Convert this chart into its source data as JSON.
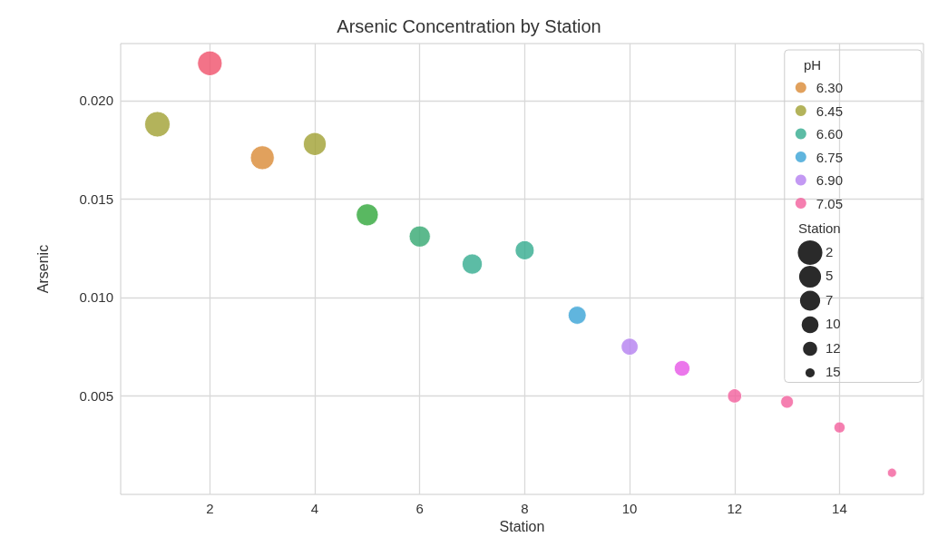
{
  "chart_data": {
    "type": "bubble",
    "title": "Arsenic Concentration by Station",
    "xlabel": "Station",
    "ylabel": "Arsenic",
    "legend_title": "pH",
    "annotations": [
      "Station"
    ],
    "series": [
      {
        "name": "6.30",
        "color": "#d98a35",
        "x": [
          3
        ],
        "values": [
          0.0171
        ],
        "sizes": [
          0.88
        ],
        "colors": [
          "#d98a35"
        ]
      },
      {
        "name": "6.45",
        "color": "#a0a032",
        "x": [
          1,
          4,
          5
        ],
        "values": [
          0.0188,
          0.0178,
          0.0142
        ],
        "sizes": [
          1,
          0.81,
          0.75
        ],
        "colors": [
          "#a0a032",
          "#a0a032",
          "#30a63a"
        ]
      },
      {
        "name": "6.60",
        "color": "#33ab8f",
        "x": [
          6,
          7,
          8
        ],
        "values": [
          0.0131,
          0.0117,
          0.0124
        ],
        "sizes": [
          0.69,
          0.63,
          0.56
        ],
        "colors": [
          "#33a870",
          "#33ab8f",
          "#33ab8f"
        ]
      },
      {
        "name": "6.75",
        "color": "#38a2d6",
        "x": [
          9
        ],
        "values": [
          0.0091
        ],
        "sizes": [
          0.5
        ],
        "colors": [
          "#38a2d6"
        ]
      },
      {
        "name": "6.90",
        "color": "#b47ff0",
        "x": [
          10,
          11
        ],
        "values": [
          0.0075,
          0.0064
        ],
        "sizes": [
          0.44,
          0.38
        ],
        "colors": [
          "#b47ff0",
          "#e655e6"
        ]
      },
      {
        "name": "7.05",
        "color": "#f25f9c",
        "x": [
          2,
          12,
          13,
          14,
          15
        ],
        "values": [
          0.0219,
          0.005,
          0.0047,
          0.0034,
          0.0011
        ],
        "sizes": [
          0.94,
          0.31,
          0.25,
          0.19,
          0.13
        ],
        "colors": [
          "#f0506a",
          "#f25f9c",
          "#f25f9c",
          "#f25f9c",
          "#f25f9c"
        ]
      }
    ],
    "size_legend": [
      {
        "value": 0.94,
        "label": "2"
      },
      {
        "value": 0.75,
        "label": "5"
      },
      {
        "value": 0.63,
        "label": "7"
      },
      {
        "value": 0.44,
        "label": "10"
      },
      {
        "value": 0.31,
        "label": "12"
      },
      {
        "value": 0.13,
        "label": "15"
      }
    ],
    "xlim": [
      0.3,
      15.6
    ],
    "xticks": [
      2,
      4,
      6,
      8,
      10,
      12,
      14
    ],
    "ylim": [
      0,
      0.0229
    ],
    "yticks": [
      {
        "value": 0.005,
        "label": "0.005"
      },
      {
        "value": 0.01,
        "label": "0.010"
      },
      {
        "value": 0.015,
        "label": "0.015"
      },
      {
        "value": 0.02,
        "label": "0.020"
      }
    ],
    "grid": true,
    "legend": "top right"
  }
}
